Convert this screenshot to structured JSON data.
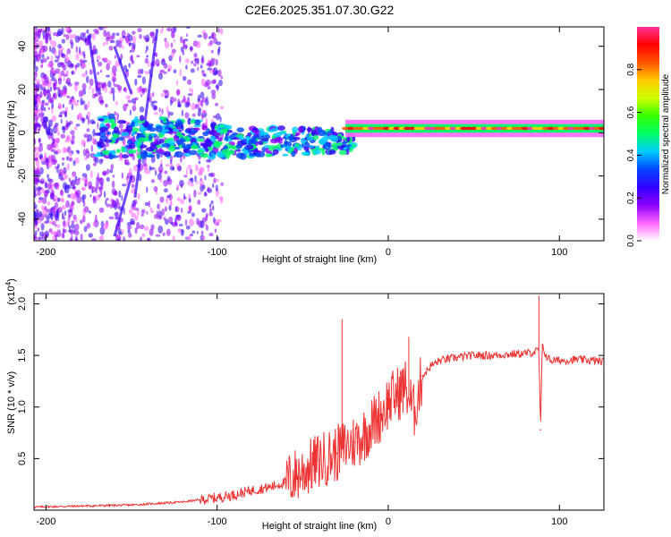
{
  "title": "C2E6.2025.351.07.30.G22",
  "chart_data": [
    {
      "type": "heatmap",
      "title": "",
      "xlabel": "Height of straight line (km)",
      "ylabel": "Frequency (Hz)",
      "xlim": [
        -207,
        126
      ],
      "ylim": [
        -50,
        49
      ],
      "xticks": [
        -200,
        -100,
        0,
        100
      ],
      "xtick_labels": [
        "-200",
        "-100",
        "0",
        "100"
      ],
      "yticks": [
        -40,
        -20,
        0,
        20,
        40
      ],
      "ytick_labels": [
        "-40",
        "-20",
        "0",
        "20",
        "40"
      ],
      "colorbar": {
        "label": "Normalized spectral amplitude",
        "range": [
          0.0,
          1.0
        ],
        "ticks": [
          0.0,
          0.2,
          0.4,
          0.6,
          0.8
        ],
        "tick_labels": [
          "0.0",
          "0.2",
          "0.4",
          "0.6",
          "0.8"
        ],
        "colormap": [
          "#ffffff",
          "#ff66ff",
          "#8c00ff",
          "#3300ff",
          "#0044ff",
          "#00ccff",
          "#00ff66",
          "#33ff00",
          "#ccff00",
          "#ffcc00",
          "#ff5500",
          "#ff0000",
          "#ff3399"
        ]
      },
      "dominant_band": {
        "description_values": "strong narrow line near 1-3 Hz from about -25 km to 126 km",
        "center_hz": 2,
        "x_from": -25,
        "x_to": 126
      }
    },
    {
      "type": "line",
      "title": "",
      "xlabel": "Height of straight line (km)",
      "ylabel": "SNR (10 * v/v)",
      "y_multiplier_label": "(x10",
      "y_multiplier_exp": "4",
      "y_multiplier_close": ")",
      "xlim": [
        -207,
        126
      ],
      "ylim": [
        0,
        2.1
      ],
      "xticks": [
        -200,
        -100,
        0,
        100
      ],
      "xtick_labels": [
        "-200",
        "-100",
        "0",
        "100"
      ],
      "yticks": [
        0.5,
        1.0,
        1.5,
        2.0
      ],
      "ytick_labels": [
        "0.5",
        "1.0",
        "1.5",
        "2.0"
      ],
      "line_color": "#ee3333",
      "series": [
        {
          "name": "SNR",
          "x": [
            -207,
            -180,
            -150,
            -120,
            -100,
            -90,
            -80,
            -70,
            -60,
            -50,
            -40,
            -30,
            -25,
            -20,
            -15,
            -10,
            -5,
            0,
            5,
            10,
            15,
            20,
            25,
            30,
            40,
            50,
            60,
            70,
            80,
            85,
            88,
            89,
            90,
            92,
            95,
            100,
            110,
            120,
            126
          ],
          "y": [
            0.03,
            0.04,
            0.05,
            0.08,
            0.12,
            0.15,
            0.19,
            0.22,
            0.27,
            0.38,
            0.48,
            0.55,
            0.62,
            0.66,
            0.72,
            0.82,
            0.92,
            1.05,
            1.12,
            1.2,
            0.95,
            1.3,
            1.4,
            1.45,
            1.48,
            1.5,
            1.5,
            1.51,
            1.52,
            1.53,
            1.55,
            0.78,
            1.6,
            1.5,
            1.45,
            1.45,
            1.46,
            1.45,
            1.44
          ]
        }
      ],
      "annotations": [
        {
          "x": -27,
          "y": 1.85
        },
        {
          "x": 12,
          "y": 1.68
        },
        {
          "x": 88,
          "y": 2.08
        }
      ]
    }
  ]
}
